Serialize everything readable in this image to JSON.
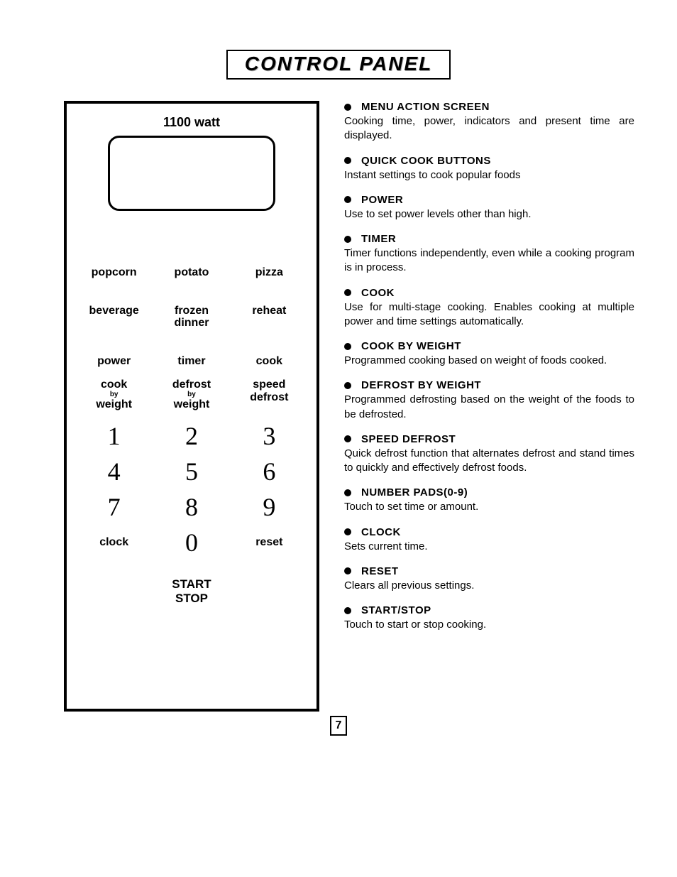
{
  "page": {
    "title": "CONTROL PANEL",
    "page_number": "7"
  },
  "panel": {
    "watt_label": "1100 watt",
    "quick_rows": [
      [
        "popcorn",
        "potato",
        "pizza"
      ],
      [
        "beverage",
        "frozen\ndinner",
        "reheat"
      ]
    ],
    "function_row1": [
      "power",
      "timer",
      "cook"
    ],
    "function_row2_main": [
      "cook",
      "defrost",
      "speed"
    ],
    "function_row2_sub": [
      "by",
      "by",
      "defrost"
    ],
    "function_row2_sub2": [
      "weight",
      "weight",
      ""
    ],
    "numbers": [
      "1",
      "2",
      "3",
      "4",
      "5",
      "6",
      "7",
      "8",
      "9"
    ],
    "bottom_row": [
      "clock",
      "0",
      "reset"
    ],
    "start": "START",
    "stop": "STOP"
  },
  "descriptions": [
    {
      "title": "MENU ACTION   SCREEN",
      "body": "Cooking time, power, indicators and present time are displayed."
    },
    {
      "title": "QUICK COOK BUTTONS",
      "body": "Instant settings to cook popular foods"
    },
    {
      "title": "POWER",
      "body": "Use to set power levels other than high."
    },
    {
      "title": "TIMER",
      "body": "Timer functions independently, even while a cooking program is in process."
    },
    {
      "title": "COOK",
      "body": "Use for multi-stage cooking.  Enables cooking at multiple power and time settings automatically."
    },
    {
      "title": "COOK BY WEIGHT",
      "body": "Programmed cooking based on weight of foods cooked."
    },
    {
      "title": "DEFROST BY WEIGHT",
      "body": "Programmed defrosting based on the weight of the foods to be defrosted."
    },
    {
      "title": "SPEED DEFROST",
      "body": "Quick defrost function that alternates defrost and stand times to quickly and effectively defrost foods."
    },
    {
      "title": "NUMBER PADS(0-9)",
      "body": "Touch to set time or amount."
    },
    {
      "title": "CLOCK",
      "body": "Sets current time."
    },
    {
      "title": "RESET",
      "body": "Clears all previous settings."
    },
    {
      "title": "START/STOP",
      "body": "Touch to start or stop cooking."
    }
  ]
}
